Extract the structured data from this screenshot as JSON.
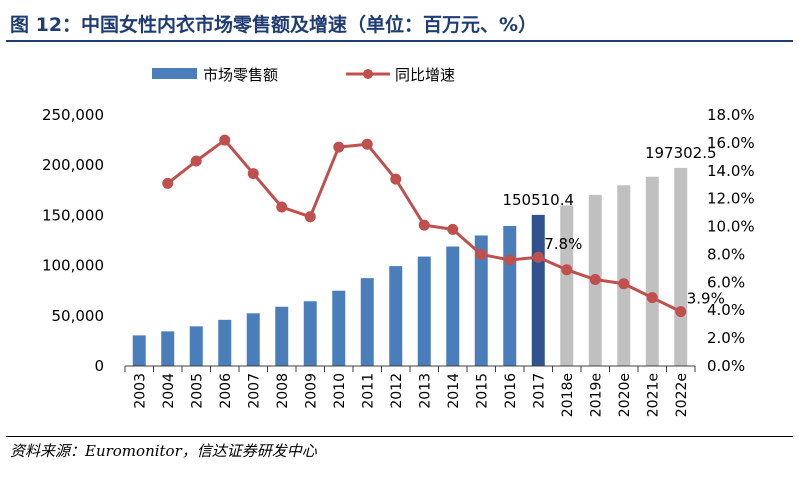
{
  "figure": {
    "title": "图 12：中国女性内衣市场零售额及增速（单位：百万元、%）",
    "source": "资料来源：Euromonitor，信达证券研发中心"
  },
  "colors": {
    "title": "#1f3c73",
    "bar_actual": "#4a7ebb",
    "bar_highlight": "#2f528f",
    "bar_estimate": "#c0c0c0",
    "line": "#c0504d",
    "axis": "#404040"
  },
  "chart_data": {
    "type": "bar",
    "categories": [
      "2003",
      "2004",
      "2005",
      "2006",
      "2007",
      "2008",
      "2009",
      "2010",
      "2011",
      "2012",
      "2013",
      "2014",
      "2015",
      "2016",
      "2017",
      "2018e",
      "2019e",
      "2020e",
      "2021e",
      "2022e"
    ],
    "series": [
      {
        "name": "市场零售额",
        "type": "bar",
        "axis": "left",
        "values": [
          30500,
          34500,
          39500,
          46000,
          52500,
          59000,
          64500,
          75000,
          87500,
          99500,
          109000,
          119000,
          130000,
          139500,
          150510.4,
          160000,
          170500,
          180000,
          188500,
          197302.5
        ]
      },
      {
        "name": "同比增速",
        "type": "line",
        "axis": "right",
        "values": [
          null,
          13.1,
          14.7,
          16.2,
          13.8,
          11.4,
          10.7,
          15.7,
          15.9,
          13.4,
          10.1,
          9.8,
          8.0,
          7.6,
          7.8,
          6.9,
          6.2,
          5.9,
          4.9,
          3.9
        ]
      }
    ],
    "y_left": {
      "min": 0,
      "max": 250000,
      "ticks": [
        "0",
        "50,000",
        "100,000",
        "150,000",
        "200,000",
        "250,000"
      ]
    },
    "y_right": {
      "min": 0,
      "max": 18,
      "ticks": [
        "0.0%",
        "2.0%",
        "4.0%",
        "6.0%",
        "8.0%",
        "10.0%",
        "12.0%",
        "14.0%",
        "16.0%",
        "18.0%"
      ]
    },
    "annotations": [
      {
        "text": "150510.4",
        "category": "2017",
        "series": "市场零售额"
      },
      {
        "text": "197302.5",
        "category": "2022e",
        "series": "市场零售额"
      },
      {
        "text": "7.8%",
        "category": "2017",
        "series": "同比增速"
      },
      {
        "text": "3.9%",
        "category": "2022e",
        "series": "同比增速"
      }
    ],
    "highlight_category": "2017",
    "estimate_from": "2018e",
    "legend_position": "top-left",
    "grid": false
  }
}
